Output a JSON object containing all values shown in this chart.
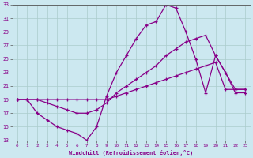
{
  "xlabel": "Windchill (Refroidissement éolien,°C)",
  "background_color": "#cce8f0",
  "line_color": "#880088",
  "grid_color": "#aacccc",
  "xlim": [
    -0.5,
    23.5
  ],
  "ylim": [
    13,
    33
  ],
  "xticks": [
    0,
    1,
    2,
    3,
    4,
    5,
    6,
    7,
    8,
    9,
    10,
    11,
    12,
    13,
    14,
    15,
    16,
    17,
    18,
    19,
    20,
    21,
    22,
    23
  ],
  "yticks": [
    13,
    15,
    17,
    19,
    21,
    23,
    25,
    27,
    29,
    31,
    33
  ],
  "line1_x": [
    0,
    1,
    2,
    3,
    4,
    5,
    6,
    7,
    8,
    9,
    10,
    11,
    12,
    13,
    14,
    15,
    16,
    17,
    18,
    19,
    20,
    21,
    22,
    23
  ],
  "line1_y": [
    19,
    19,
    17,
    16,
    15,
    14.5,
    14,
    13,
    15,
    19.5,
    23,
    25.5,
    28,
    30,
    30.5,
    33,
    32.5,
    29,
    25,
    20,
    25.5,
    23,
    20,
    20
  ],
  "line2_x": [
    0,
    1,
    2,
    3,
    4,
    5,
    6,
    7,
    8,
    9,
    10,
    11,
    12,
    13,
    14,
    15,
    16,
    17,
    18,
    19,
    20,
    21,
    22,
    23
  ],
  "line2_y": [
    19,
    19,
    19,
    18.5,
    18,
    17.5,
    17,
    17,
    17.5,
    18.5,
    20,
    21,
    22,
    23,
    24,
    25.5,
    26.5,
    27.5,
    28,
    28.5,
    25.5,
    23,
    20.5,
    20.5
  ],
  "line3_x": [
    0,
    1,
    2,
    3,
    4,
    5,
    6,
    7,
    8,
    9,
    10,
    11,
    12,
    13,
    14,
    15,
    16,
    17,
    18,
    19,
    20,
    21,
    22,
    23
  ],
  "line3_y": [
    19,
    19,
    19,
    19,
    19,
    19,
    19,
    19,
    19,
    19,
    19.5,
    20,
    20.5,
    21,
    21.5,
    22,
    22.5,
    23,
    23.5,
    24,
    24.5,
    20.5,
    20.5,
    20.5
  ]
}
